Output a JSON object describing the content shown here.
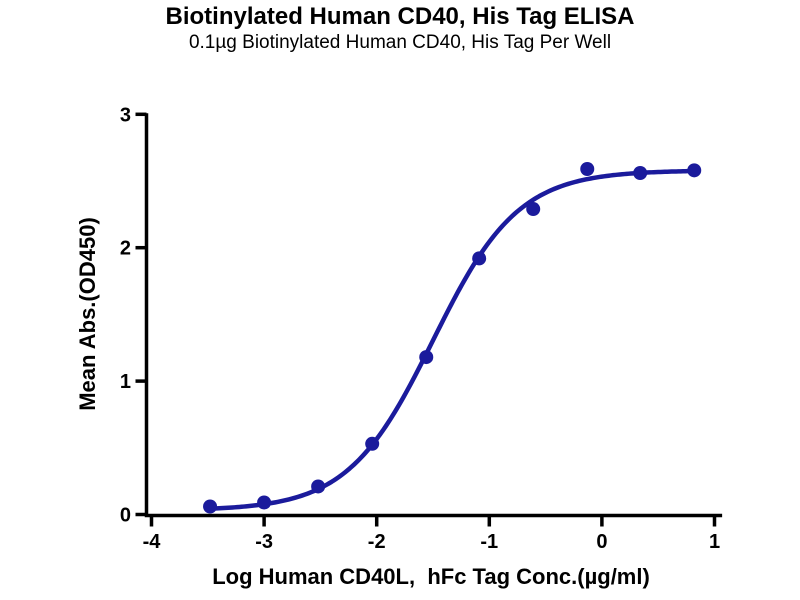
{
  "page": {
    "background_color": "#ffffff",
    "text_color": "#000000"
  },
  "chart_data": {
    "type": "scatter",
    "title": "Biotinylated Human CD40, His Tag ELISA",
    "subtitle": "0.1µg Biotinylated Human CD40, His Tag Per Well",
    "xlabel": "Log Human CD40L,  hFc Tag Conc.(µg/ml)",
    "ylabel": "Mean Abs.(OD450)",
    "xlim": [
      -4,
      1.05
    ],
    "ylim": [
      0,
      3
    ],
    "x_ticks": [
      -4,
      -3,
      -2,
      -1,
      0,
      1
    ],
    "y_ticks": [
      0,
      1,
      2,
      3
    ],
    "grid": false,
    "legend": "none",
    "marker_color": "#1b1b9c",
    "curve_color": "#1b1b9c",
    "axis_color": "#000000",
    "points": [
      {
        "x": -3.48,
        "y": 0.06
      },
      {
        "x": -3.0,
        "y": 0.09
      },
      {
        "x": -2.52,
        "y": 0.21
      },
      {
        "x": -2.04,
        "y": 0.53
      },
      {
        "x": -1.56,
        "y": 1.18
      },
      {
        "x": -1.09,
        "y": 1.92
      },
      {
        "x": -0.61,
        "y": 2.29
      },
      {
        "x": -0.13,
        "y": 2.59
      },
      {
        "x": 0.34,
        "y": 2.56
      },
      {
        "x": 0.82,
        "y": 2.58
      }
    ],
    "fit_curve": {
      "model": "4PL",
      "bottom": 0.03,
      "top": 2.58,
      "logEC50": -1.5,
      "hill": 1.15,
      "x_start": -3.48,
      "x_end": 0.82
    }
  }
}
